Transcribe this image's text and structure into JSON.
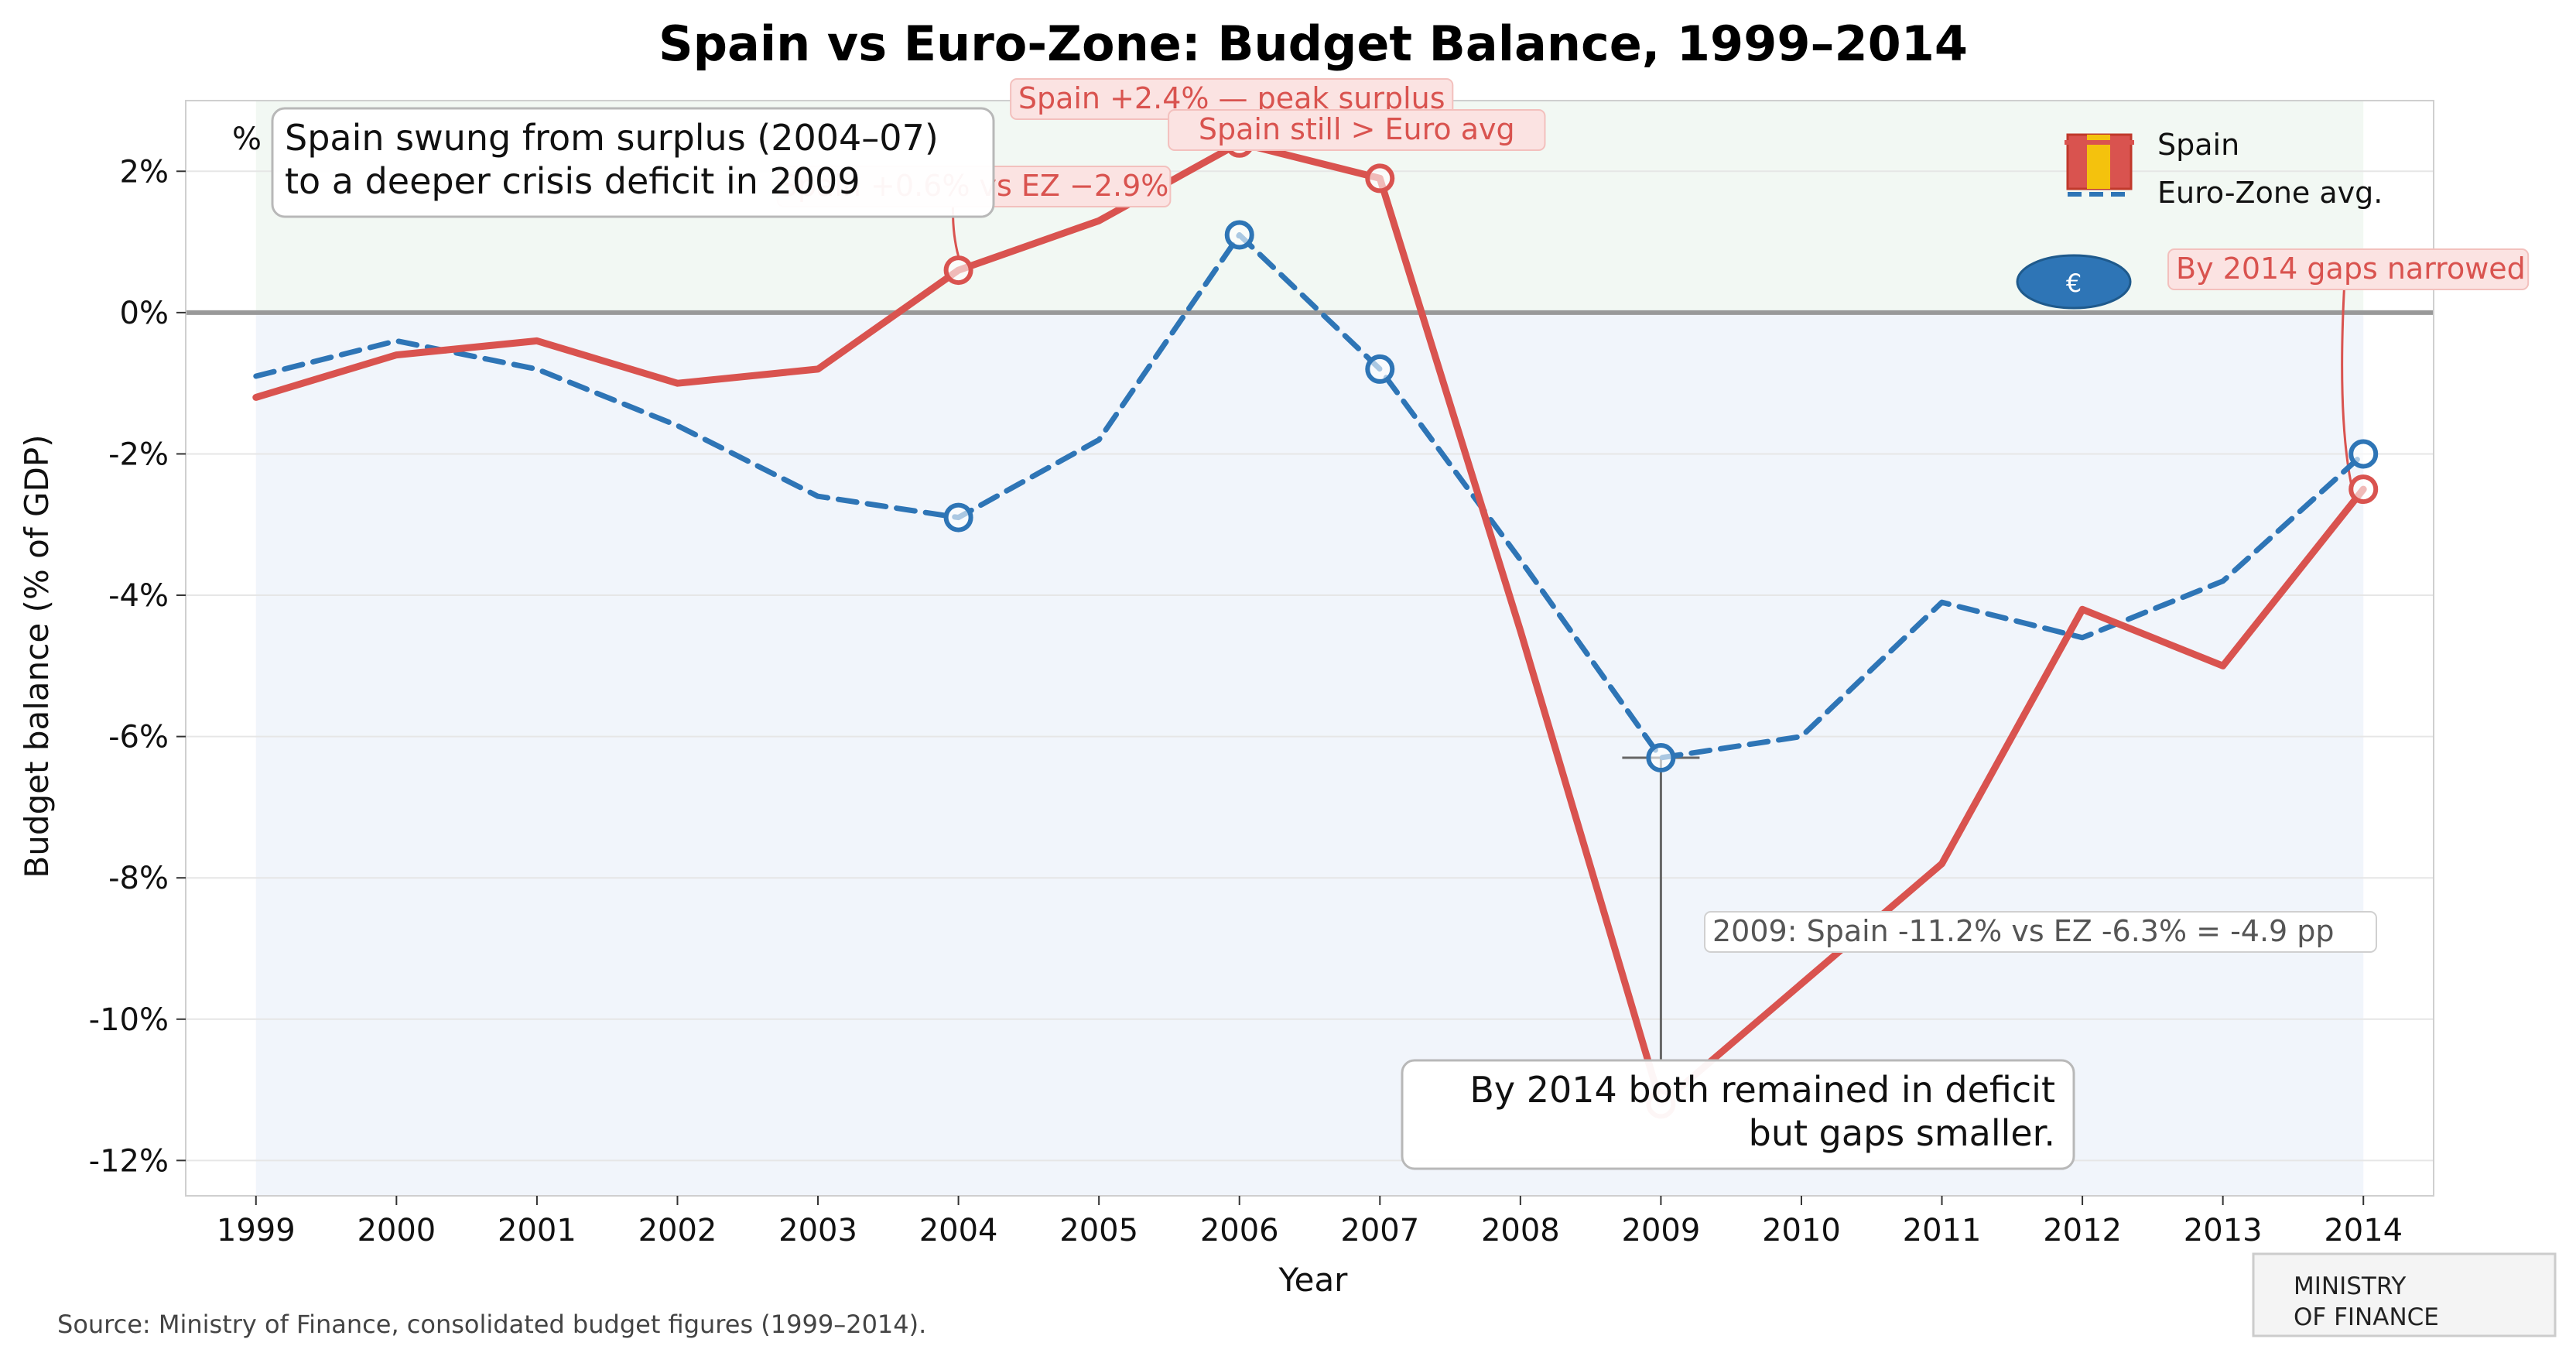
{
  "chart_data": {
    "type": "line",
    "title": "Spain vs Euro-Zone: Budget Balance, 1999–2014",
    "xlabel": "Year",
    "ylabel": "Budget balance (% of GDP)",
    "x": [
      1999,
      2000,
      2001,
      2002,
      2003,
      2004,
      2005,
      2006,
      2007,
      2008,
      2009,
      2010,
      2011,
      2012,
      2013,
      2014
    ],
    "xlim": [
      1998.5,
      2014.5
    ],
    "ylim": [
      -12.5,
      3.0
    ],
    "y_ticks": [
      2,
      0,
      -2,
      -4,
      -6,
      -8,
      -10,
      -12
    ],
    "y_tick_labels": [
      "2%",
      "0%",
      "-2%",
      "-4%",
      "-6%",
      "-8%",
      "-10%",
      "-12%"
    ],
    "y_unit_label": "%",
    "grid": "horizontal",
    "legend_position": "top-right",
    "series": [
      {
        "name": "Spain",
        "values": [
          -1.2,
          -0.6,
          -0.4,
          -1.0,
          -0.8,
          0.6,
          1.3,
          2.4,
          1.9,
          -4.5,
          -11.2,
          -9.5,
          -7.8,
          -4.2,
          -5.0,
          -2.5
        ],
        "color": "#d9534f",
        "style": "solid",
        "highlighted_years": [
          2004,
          2006,
          2007,
          2009,
          2014
        ]
      },
      {
        "name": "Euro-Zone avg.",
        "values": [
          -0.9,
          -0.4,
          -0.8,
          -1.6,
          -2.6,
          -2.9,
          -1.8,
          1.1,
          -0.8,
          -3.5,
          -6.3,
          -6.0,
          -4.1,
          -4.6,
          -3.8,
          -2.0
        ],
        "color": "#2e75b6",
        "style": "dashed",
        "highlighted_years": [
          2004,
          2006,
          2007,
          2009,
          2014
        ]
      }
    ],
    "annotations": [
      {
        "text": "Spain +0.6% vs EZ −2.9%",
        "x": 2004,
        "y": 0.6
      },
      {
        "text": "Spain +2.4% — peak surplus",
        "x": 2006,
        "y": 2.4
      },
      {
        "text": "Spain still > Euro avg",
        "x": 2007,
        "y": 1.9
      },
      {
        "text": "By 2014 gaps narrowed",
        "x": 2014,
        "y": -2.5
      },
      {
        "text": "2009: Spain -11.2% vs EZ -6.3% = -4.9 pp",
        "x": 2009,
        "y": -8.8
      }
    ],
    "callouts": {
      "top_left": [
        "Spain swung from surplus (2004–07)",
        "to a deeper crisis deficit in 2009"
      ],
      "bottom": [
        "By 2014 both remained in deficit",
        "but gaps smaller."
      ]
    },
    "euro_badge": "€"
  },
  "source": "Source: Ministry of Finance, consolidated budget figures (1999–2014).",
  "stamp": [
    "MINISTRY",
    "OF FINANCE"
  ]
}
